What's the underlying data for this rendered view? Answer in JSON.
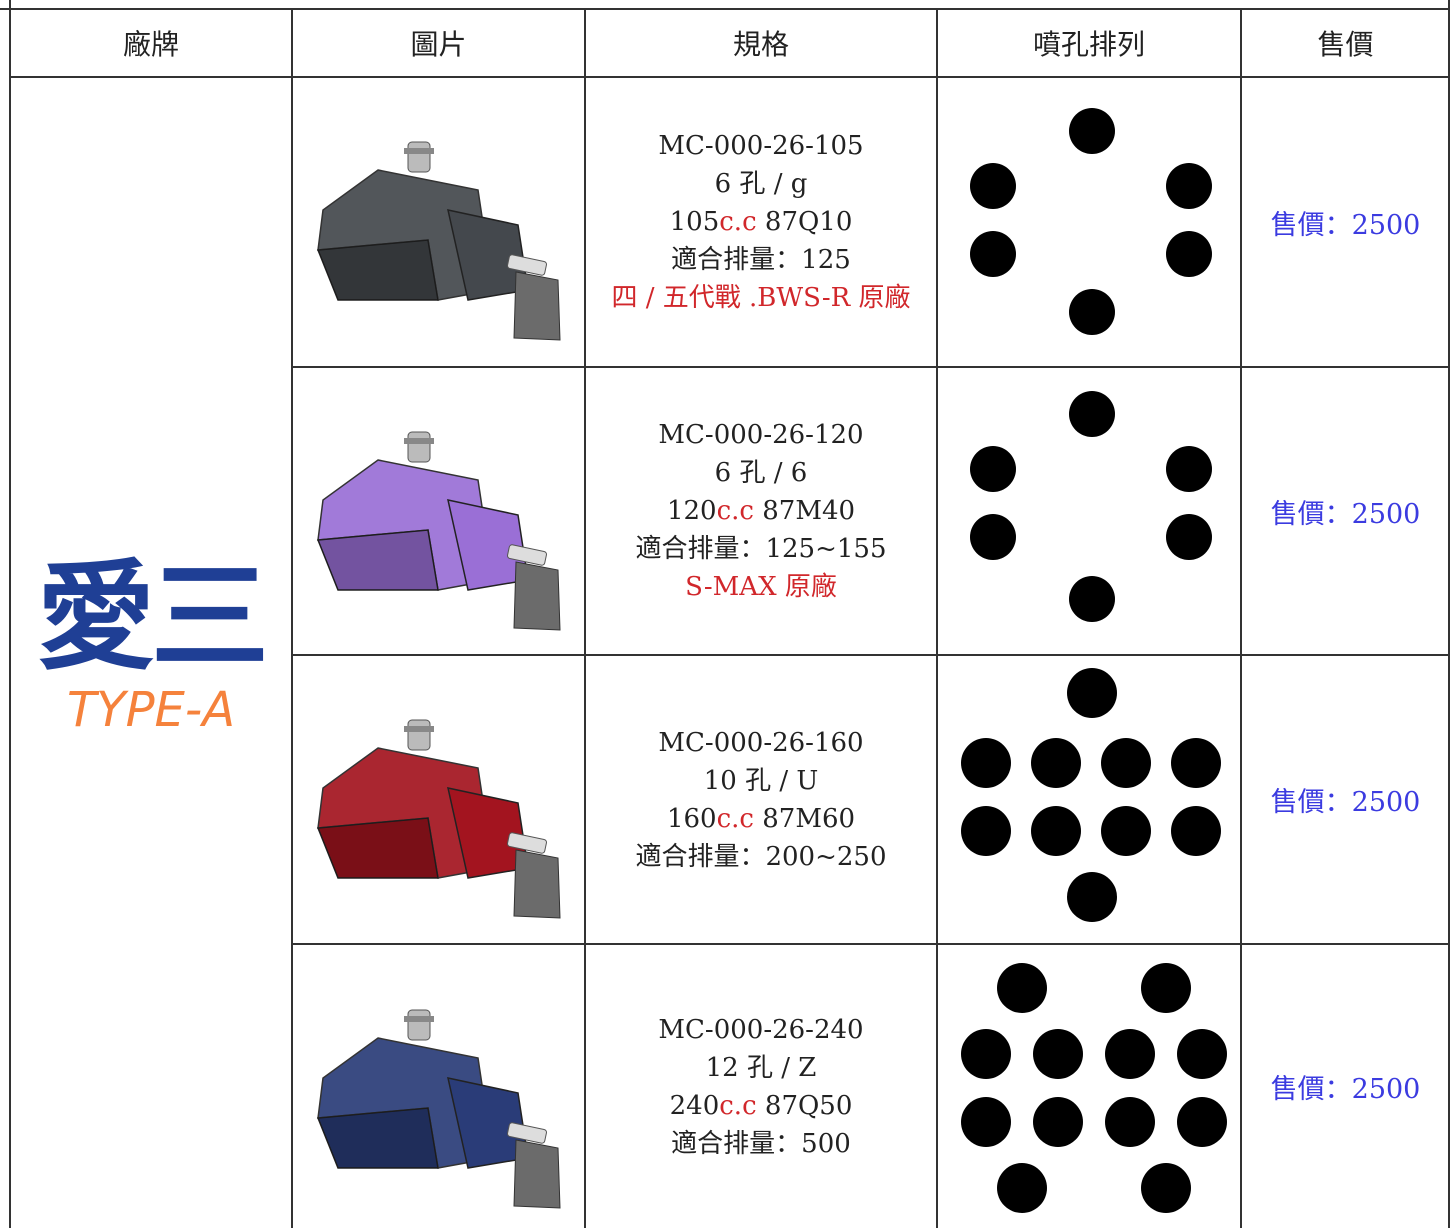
{
  "header": [
    "廠牌",
    "圖片",
    "規格",
    "噴孔排列",
    "售價"
  ],
  "brand": {
    "name": "愛三",
    "type": "TYPE-A"
  },
  "rows": [
    {
      "part_no": "MC-000-26-105",
      "holes": "6 孔 / g",
      "cc_num": "105",
      "cc_unit": "c.c",
      "code": " 87Q10",
      "fit": "適合排量：125",
      "note": "四 / 五代戰 .BWS-R 原廠",
      "price": "售價：2500"
    },
    {
      "part_no": "MC-000-26-120",
      "holes": "6 孔 / 6",
      "cc_num": "120",
      "cc_unit": "c.c",
      "code": " 87M40",
      "fit": "適合排量：125~155",
      "note": "S-MAX 原廠",
      "price": "售價：2500"
    },
    {
      "part_no": "MC-000-26-160",
      "holes": "10 孔 / U",
      "cc_num": "160",
      "cc_unit": "c.c",
      "code": " 87M60",
      "fit": "適合排量：200~250",
      "price": "售價：2500"
    },
    {
      "part_no": "MC-000-26-240",
      "holes": "12 孔 / Z",
      "cc_num": "240",
      "cc_unit": "c.c",
      "code": " 87Q50",
      "fit": "適合排量：500",
      "price": "售價：2500"
    }
  ]
}
